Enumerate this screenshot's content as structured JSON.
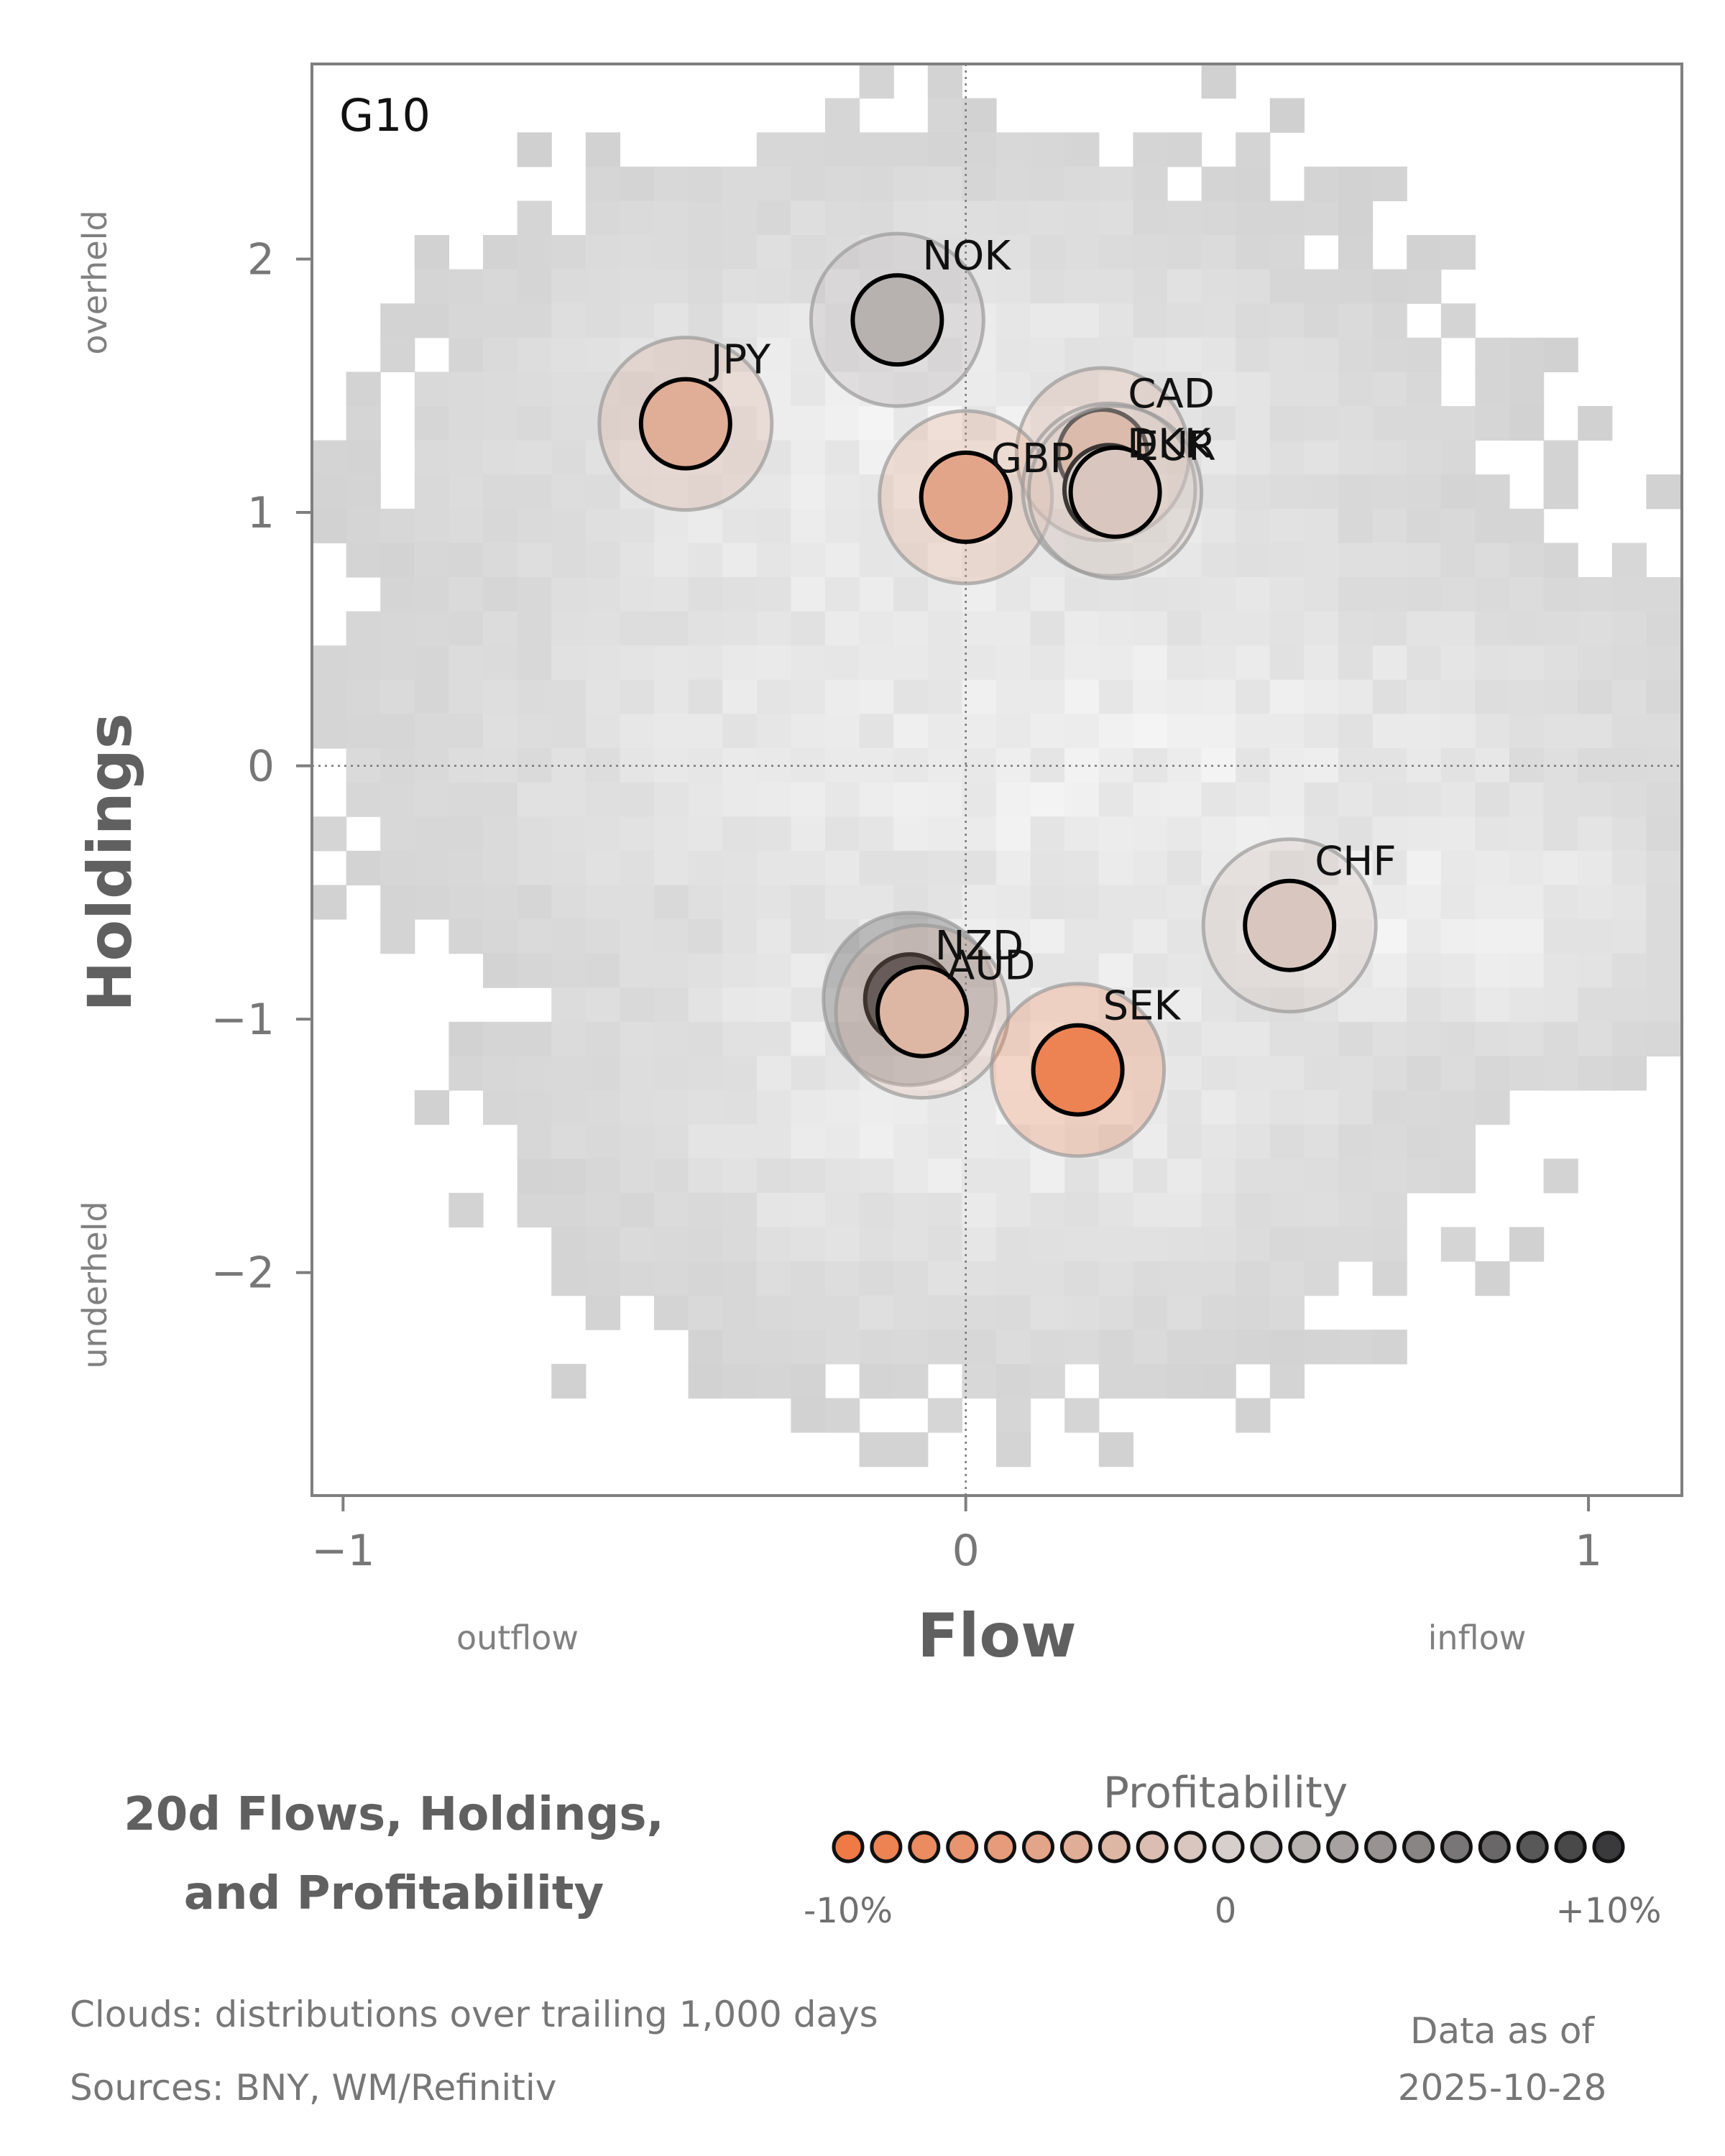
{
  "chart_data": {
    "type": "scatter",
    "panel_label": "G10",
    "xlabel": "Flow",
    "ylabel": "Holdings",
    "x_low_label": "outflow",
    "x_high_label": "inflow",
    "y_high_label": "overheld",
    "y_low_label": "underheld",
    "xlim": [
      -1.05,
      1.15
    ],
    "ylim": [
      -2.88,
      2.77
    ],
    "x_ticks": [
      {
        "v": -1,
        "label": "−1"
      },
      {
        "v": 0,
        "label": "0"
      },
      {
        "v": 1,
        "label": "1"
      }
    ],
    "y_ticks": [
      {
        "v": 2,
        "label": "2"
      },
      {
        "v": 1,
        "label": "1"
      },
      {
        "v": 0,
        "label": "0"
      },
      {
        "v": -1,
        "label": "−1"
      },
      {
        "v": -2,
        "label": "−2"
      }
    ],
    "reference_lines": {
      "x": 0,
      "y": 0
    },
    "points": [
      {
        "currency": "NOK",
        "flow": -0.11,
        "holdings": 1.76,
        "profitability": 2
      },
      {
        "currency": "JPY",
        "flow": -0.45,
        "holdings": 1.35,
        "profitability": -4
      },
      {
        "currency": "CAD",
        "flow": 0.22,
        "holdings": 1.23,
        "profitability": -4
      },
      {
        "currency": "GBP",
        "flow": 0.0,
        "holdings": 1.06,
        "profitability": -5
      },
      {
        "currency": "DKK",
        "flow": 0.23,
        "holdings": 1.09,
        "profitability": 0
      },
      {
        "currency": "EUR",
        "flow": 0.24,
        "holdings": 1.08,
        "profitability": -1
      },
      {
        "currency": "CHF",
        "flow": 0.52,
        "holdings": -0.63,
        "profitability": -1
      },
      {
        "currency": "NZD",
        "flow": -0.09,
        "holdings": -0.92,
        "profitability": 10
      },
      {
        "currency": "AUD",
        "flow": -0.07,
        "holdings": -0.97,
        "profitability": -3
      },
      {
        "currency": "SEK",
        "flow": 0.18,
        "holdings": -1.2,
        "profitability": -9
      }
    ],
    "legend": {
      "title": "Profitability",
      "min_label": "-10%",
      "mid_label": "0",
      "max_label": "+10%",
      "steps": 21
    },
    "colors": {
      "negative_end": "#f07a45",
      "neutral": "#d6cfcc",
      "positive_end": "#3a3a3c",
      "cloud": "#cccccc",
      "axis": "#7f7f7f"
    },
    "title": "20d Flows, Holdings, and Profitability"
  },
  "footer": {
    "title_line1": "20d Flows, Holdings,",
    "title_line2": "and Profitability",
    "clouds_note": "Clouds:  distributions over trailing 1,000 days",
    "sources_note": "Sources:  BNY, WM/Refinitiv",
    "asof_line1": "Data as of",
    "asof_line2": "2025-10-28"
  }
}
